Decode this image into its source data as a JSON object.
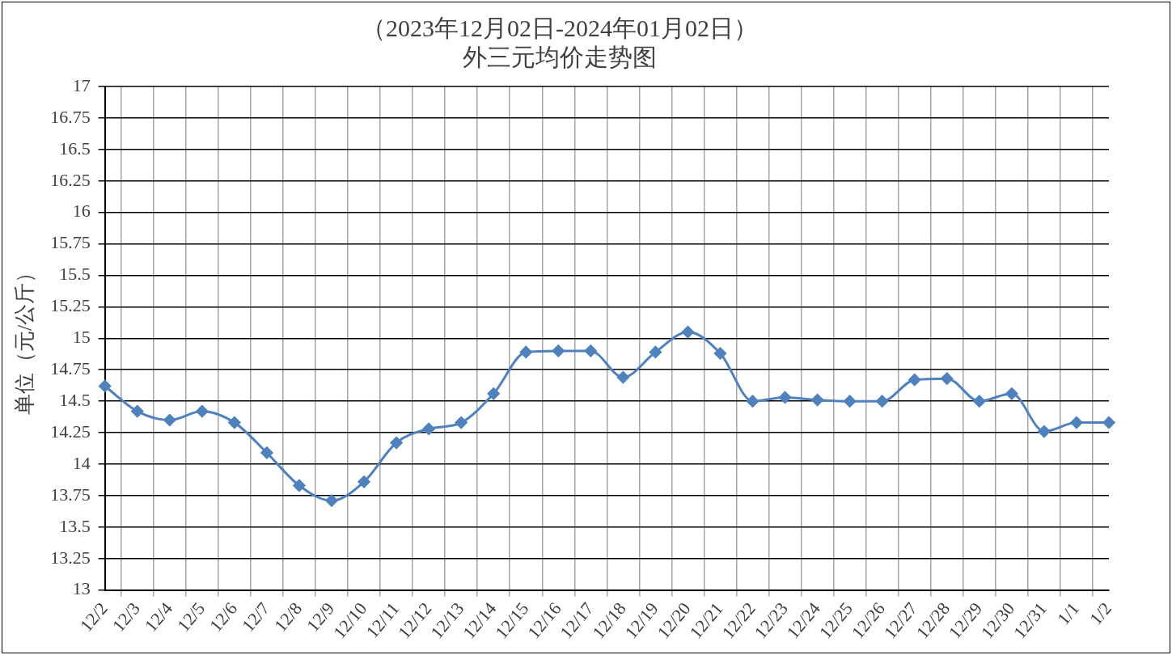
{
  "chart_data": {
    "type": "line",
    "title": "（2023年12月02日-2024年01月02日）",
    "subtitle": "外三元均价走势图",
    "ylabel": "单位（元/公斤）",
    "categories": [
      "12/2",
      "12/3",
      "12/4",
      "12/5",
      "12/6",
      "12/7",
      "12/8",
      "12/9",
      "12/10",
      "12/11",
      "12/12",
      "12/13",
      "12/14",
      "12/15",
      "12/16",
      "12/17",
      "12/18",
      "12/19",
      "12/20",
      "12/21",
      "12/22",
      "12/23",
      "12/24",
      "12/25",
      "12/26",
      "12/27",
      "12/28",
      "12/29",
      "12/30",
      "12/31",
      "1/1",
      "1/2"
    ],
    "series": [
      {
        "color": "#4f81bd",
        "values": [
          14.62,
          14.42,
          14.35,
          14.42,
          14.33,
          14.09,
          13.83,
          13.71,
          13.86,
          14.17,
          14.28,
          14.33,
          14.56,
          14.89,
          14.9,
          14.9,
          14.69,
          14.89,
          15.05,
          14.88,
          14.5,
          14.53,
          14.51,
          14.5,
          14.5,
          14.67,
          14.68,
          14.5,
          14.56,
          14.26,
          14.33,
          14.33
        ]
      }
    ],
    "ylim": [
      13,
      17
    ],
    "yticks": [
      13,
      13.25,
      13.5,
      13.75,
      14,
      14.25,
      14.5,
      14.75,
      15,
      15.25,
      15.5,
      15.75,
      16,
      16.25,
      16.5,
      16.75,
      17
    ],
    "grid": true,
    "legend": false,
    "marker": "diamond",
    "line_style": "solid"
  }
}
